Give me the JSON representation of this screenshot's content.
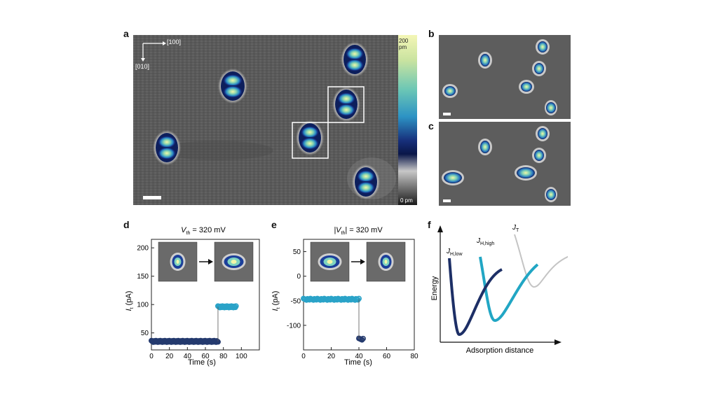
{
  "panels": {
    "a": "a",
    "b": "b",
    "c": "c",
    "d": "d",
    "e": "e",
    "f": "f"
  },
  "panel_a": {
    "dir_x": "[100]",
    "dir_y": "[010]",
    "colorbar_top": "200 pm",
    "colorbar_bottom": "0 pm"
  },
  "chart_data": [
    {
      "panel": "d",
      "type": "scatter",
      "title_main": "V",
      "title_sub": "th",
      "title_rest": " = 320 mV",
      "xlabel": "Time (s)",
      "ylabel_main": "I",
      "ylabel_sub": "t",
      "ylabel_rest": " (pA)",
      "xlim": [
        0,
        120
      ],
      "ylim": [
        20,
        215
      ],
      "xticks": [
        0,
        20,
        40,
        60,
        80,
        100
      ],
      "yticks": [
        50,
        100,
        150,
        200
      ],
      "colors": {
        "before": "#243a6e",
        "after": "#2aa3c8"
      },
      "series": [
        {
          "x_range": [
            0,
            74
          ],
          "y": 35
        },
        {
          "x_range": [
            74,
            94
          ],
          "y": 96
        }
      ]
    },
    {
      "panel": "e",
      "type": "scatter",
      "title_main": "|V",
      "title_sub": "th",
      "title_rest": "| = 320 mV",
      "xlabel": "Time (s)",
      "ylabel_main": "I",
      "ylabel_sub": "t",
      "ylabel_rest": " (pA)",
      "xlim": [
        0,
        80
      ],
      "ylim": [
        -150,
        75
      ],
      "xticks": [
        0,
        20,
        40,
        60,
        80
      ],
      "yticks": [
        50,
        0,
        -50,
        -100
      ],
      "colors": {
        "before": "#2aa3c8",
        "after": "#243a6e"
      },
      "series": [
        {
          "x_range": [
            0,
            40
          ],
          "y": -47
        },
        {
          "x_range": [
            40,
            43
          ],
          "y": -128
        }
      ]
    },
    {
      "panel": "f",
      "type": "line",
      "xlabel": "Adsorption distance",
      "ylabel": "Energy",
      "curves": [
        {
          "name_main": "J",
          "name_sub": "H,low",
          "color": "#1d2f66"
        },
        {
          "name_main": "J",
          "name_sub": "H,high",
          "color": "#21a6c4"
        },
        {
          "name_main": "J",
          "name_sub": "T",
          "color": "#c4c4c4"
        }
      ]
    }
  ]
}
